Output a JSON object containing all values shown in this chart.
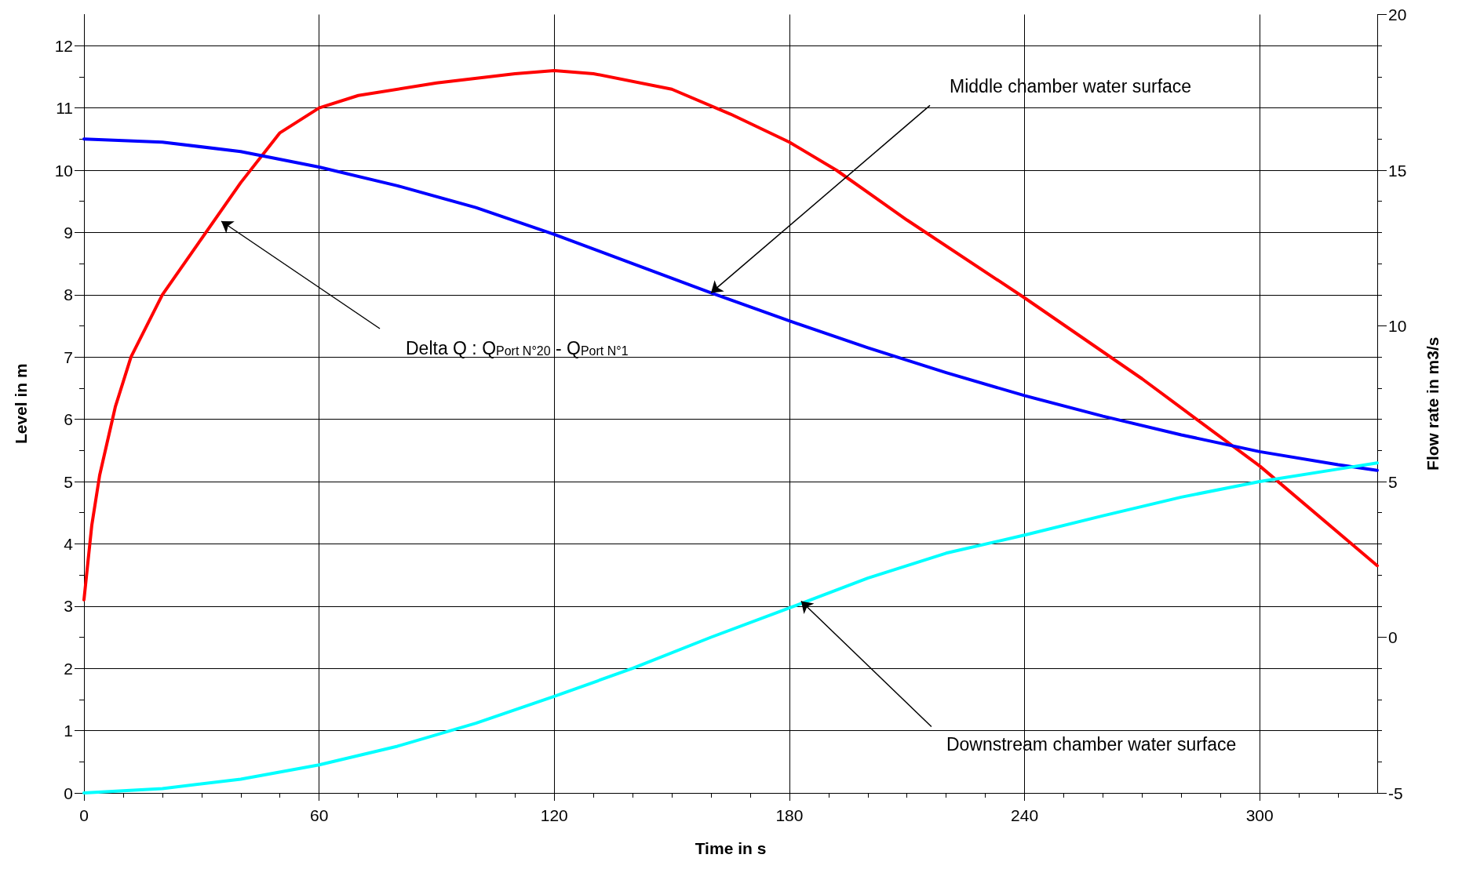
{
  "chart_data": {
    "type": "line",
    "xlabel": "Time in s",
    "ylabel": "Level in m",
    "y2label": "Flow rate in m3/s",
    "xlim": [
      0,
      330
    ],
    "xticks": [
      0,
      60,
      120,
      180,
      240,
      300
    ],
    "ylim": [
      0,
      12.5
    ],
    "yticks": [
      0,
      1,
      2,
      3,
      4,
      5,
      6,
      7,
      8,
      9,
      10,
      11,
      12
    ],
    "y2lim": [
      -5,
      20
    ],
    "y2ticks": [
      -5,
      0,
      5,
      10,
      15,
      20
    ],
    "grid": true,
    "marker": "none",
    "line_style": "solid",
    "series": [
      {
        "color": "#ff0000",
        "axis": "y2",
        "x": [
          0,
          2,
          4,
          8,
          12,
          20,
          30,
          40,
          50,
          60,
          70,
          90,
          110,
          120,
          130,
          150,
          165,
          180,
          192,
          210,
          240,
          270,
          300,
          330
        ],
        "values": [
          1.2,
          3.6,
          5.2,
          7.4,
          9.0,
          11.0,
          12.8,
          14.6,
          16.2,
          17.0,
          17.4,
          17.8,
          18.1,
          18.2,
          18.1,
          17.6,
          16.8,
          15.9,
          15.0,
          13.4,
          10.9,
          8.3,
          5.5,
          2.3
        ]
      },
      {
        "color": "#0000ff",
        "x": [
          0,
          20,
          40,
          60,
          80,
          100,
          120,
          140,
          160,
          180,
          200,
          220,
          240,
          260,
          280,
          300,
          320,
          330
        ],
        "values": [
          10.5,
          10.45,
          10.3,
          10.05,
          9.75,
          9.4,
          8.97,
          8.5,
          8.03,
          7.58,
          7.15,
          6.75,
          6.38,
          6.05,
          5.75,
          5.48,
          5.27,
          5.18
        ]
      },
      {
        "color": "#00ffff",
        "x": [
          0,
          20,
          40,
          60,
          80,
          100,
          120,
          140,
          160,
          180,
          200,
          220,
          240,
          260,
          280,
          300,
          320,
          330
        ],
        "values": [
          0,
          0.07,
          0.22,
          0.45,
          0.75,
          1.12,
          1.55,
          2.0,
          2.5,
          2.97,
          3.45,
          3.85,
          4.14,
          4.45,
          4.75,
          5.0,
          5.2,
          5.3
        ]
      }
    ],
    "annotations": [
      "Delta Q : Q$_{Port N°20}$ - Q$_{Port N°1}$",
      {
        "text": "Middle chamber water surface",
        "x": 160,
        "y": 8.03
      },
      {
        "text": "Downstream chamber water surface",
        "x": 183,
        "y": 3.08
      }
    ]
  }
}
